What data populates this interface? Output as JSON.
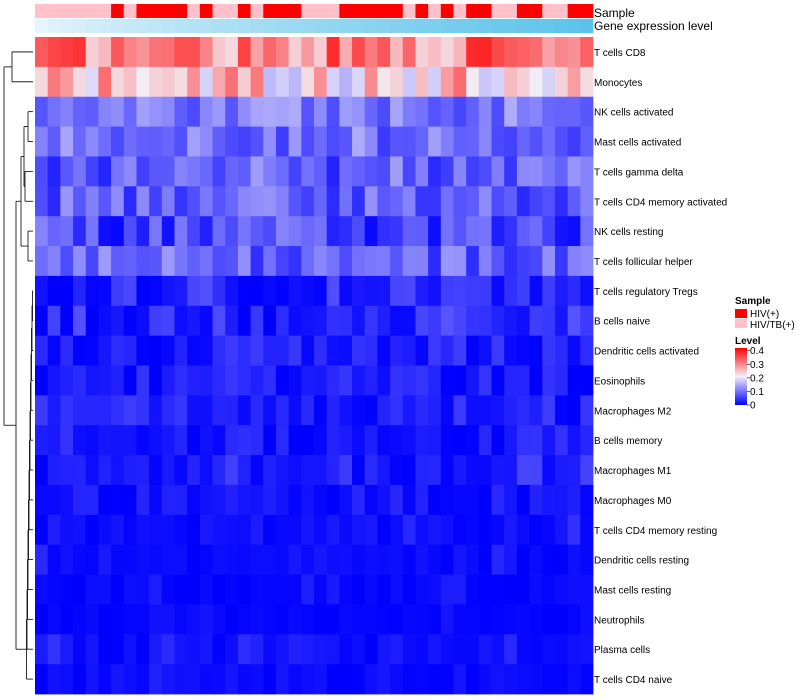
{
  "chart_data": {
    "type": "heatmap",
    "title": "",
    "annotation_labels": {
      "sample": "Sample",
      "gene_expression": "Gene expression level"
    },
    "rows": [
      "T cells CD8",
      "Monocytes",
      "NK cells activated",
      "Mast cells activated",
      "T cells gamma delta",
      "T cells CD4 memory activated",
      "NK cells resting",
      "T cells follicular helper",
      "T cells regulatory  Tregs",
      "B cells naive",
      "Dendritic cells activated",
      "Eosinophils",
      "Macrophages M2",
      "B cells memory",
      "Macrophages M1",
      "Macrophages M0",
      "T cells CD4 memory resting",
      "Dendritic cells resting",
      "Mast cells resting",
      "Neutrophils",
      "Plasma cells",
      "T cells CD4 naive"
    ],
    "n_samples": 44,
    "sample_groups": [
      "HIV/TB(+)",
      "HIV/TB(+)",
      "HIV/TB(+)",
      "HIV/TB(+)",
      "HIV/TB(+)",
      "HIV/TB(+)",
      "HIV(+)",
      "HIV/TB(+)",
      "HIV(+)",
      "HIV(+)",
      "HIV(+)",
      "HIV(+)",
      "HIV/TB(+)",
      "HIV(+)",
      "HIV/TB(+)",
      "HIV/TB(+)",
      "HIV(+)",
      "HIV/TB(+)",
      "HIV(+)",
      "HIV(+)",
      "HIV(+)",
      "HIV/TB(+)",
      "HIV/TB(+)",
      "HIV/TB(+)",
      "HIV(+)",
      "HIV(+)",
      "HIV(+)",
      "HIV(+)",
      "HIV(+)",
      "HIV/TB(+)",
      "HIV(+)",
      "HIV/TB(+)",
      "HIV(+)",
      "HIV/TB(+)",
      "HIV(+)",
      "HIV(+)",
      "HIV/TB(+)",
      "HIV/TB(+)",
      "HIV(+)",
      "HIV(+)",
      "HIV/TB(+)",
      "HIV/TB(+)",
      "HIV(+)",
      "HIV(+)"
    ],
    "gene_expression_range": [
      0,
      1
    ],
    "legend": {
      "sample_title": "Sample",
      "sample_entries": [
        {
          "label": "HIV(+)",
          "color": "#ff0000"
        },
        {
          "label": "HIV/TB(+)",
          "color": "#ffc0cb"
        }
      ],
      "level_title": "Level",
      "level_ticks": [
        0.4,
        0.3,
        0.2,
        0.1,
        0
      ],
      "level_tick_labels": [
        "0.4",
        "0.3",
        "0.2",
        "0.1",
        "0"
      ],
      "placement": "right"
    },
    "colors": {
      "low": "#0000ff",
      "mid": "#f4f0f8",
      "high": "#ff0000",
      "hiv": "#ff0000",
      "hiv_tb": "#ffc0cb",
      "gene_low": "#e6f4fb",
      "gene_high": "#5bc3ea"
    },
    "value_range": [
      0,
      0.42
    ],
    "row_mean_values": [
      0.31,
      0.24,
      0.11,
      0.1,
      0.09,
      0.085,
      0.06,
      0.085,
      0.03,
      0.035,
      0.025,
      0.02,
      0.025,
      0.02,
      0.015,
      0.015,
      0.008,
      0.008,
      0.004,
      0.003,
      0.01,
      0.008
    ],
    "row_spread": [
      0.08,
      0.09,
      0.05,
      0.05,
      0.06,
      0.05,
      0.06,
      0.05,
      0.04,
      0.04,
      0.03,
      0.03,
      0.03,
      0.025,
      0.02,
      0.02,
      0.015,
      0.012,
      0.01,
      0.006,
      0.015,
      0.012
    ]
  }
}
